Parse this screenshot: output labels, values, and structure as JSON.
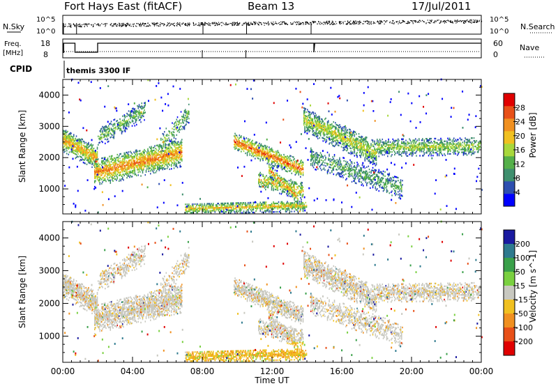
{
  "header": {
    "station": "Fort Hays East (fitACF)",
    "beam": "Beam 13",
    "date": "17/Jul/2011"
  },
  "noise_panel": {
    "left_label": "N.Sky",
    "right_label": "N.Search",
    "left_ticks": [
      "10^5",
      "10^0"
    ],
    "right_ticks": [
      "10^5",
      "10^0"
    ]
  },
  "freq_panel": {
    "left_label_top": "Freq.",
    "left_label_bottom": "[MHz]",
    "left_ticks": [
      "18",
      "8"
    ],
    "right_label": "Nave",
    "right_ticks": [
      "60",
      "0"
    ]
  },
  "cpid": {
    "label": "CPID",
    "mode": "themis 3300 IF"
  },
  "x_axis": {
    "label": "Time UT",
    "ticks": [
      "00:00",
      "04:00",
      "08:00",
      "12:00",
      "16:00",
      "20:00",
      "00:00"
    ]
  },
  "chart_data": [
    {
      "type": "heatmap",
      "title": "",
      "ylabel": "Slant Range [km]",
      "yticks": [
        "1000",
        "2000",
        "3000",
        "4000"
      ],
      "ylim": [
        200,
        4500
      ],
      "xlim": [
        0,
        24
      ],
      "colorbar": {
        "label": "Power [dB]",
        "ticks": [
          "4",
          "8",
          "12",
          "16",
          "20",
          "24",
          "28"
        ],
        "colors": [
          "#0000ff",
          "#2e4fb0",
          "#3f8f6e",
          "#55b04a",
          "#a8d83c",
          "#f0c020",
          "#f09020",
          "#e85018",
          "#e00000"
        ]
      }
    },
    {
      "type": "heatmap",
      "title": "",
      "ylabel": "Slant Range [km]",
      "yticks": [
        "1000",
        "2000",
        "3000",
        "4000"
      ],
      "ylim": [
        200,
        4500
      ],
      "xlim": [
        0,
        24
      ],
      "colorbar": {
        "label": "Velocity [m s^-1]",
        "ticks": [
          "200",
          "100",
          "50",
          "15",
          "-15",
          "-50",
          "-100",
          "-200"
        ],
        "colors": [
          "#1a1aa0",
          "#2e7a8e",
          "#3aa04a",
          "#7ad040",
          "#c8c8c0",
          "#f0c020",
          "#f09020",
          "#e85018",
          "#e00000"
        ]
      }
    }
  ]
}
